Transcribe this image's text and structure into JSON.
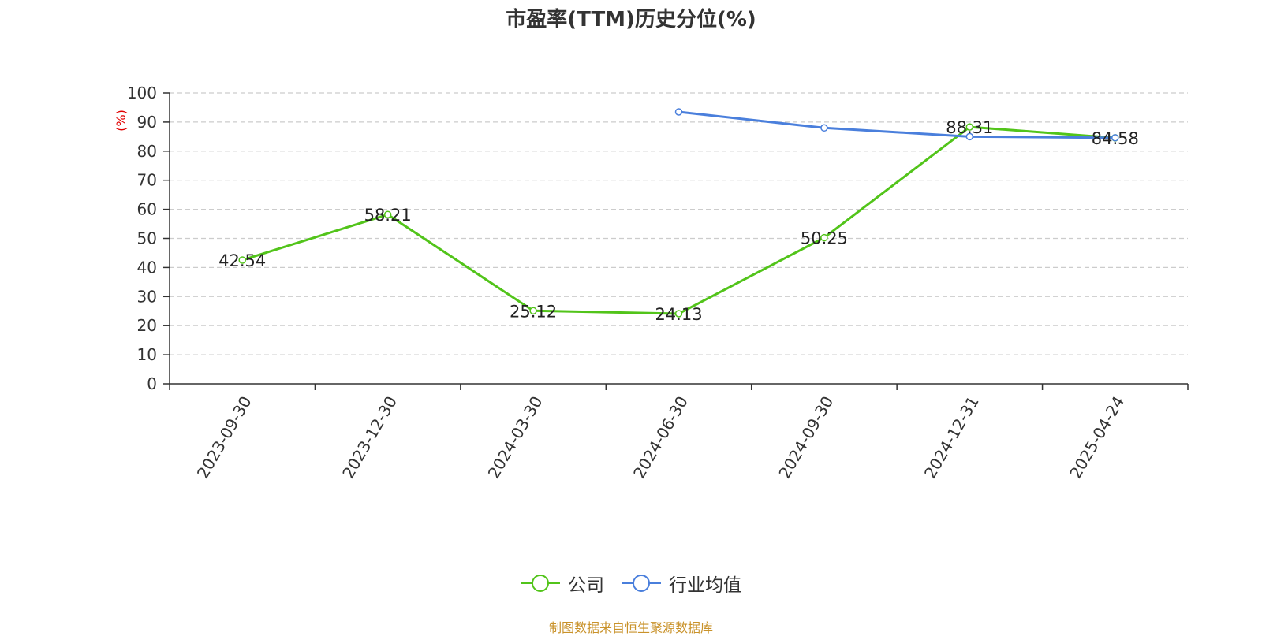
{
  "chart_data": {
    "type": "line",
    "title": "市盈率(TTM)历史分位(%)",
    "ylabel": "(%)",
    "categories": [
      "2023-09-30",
      "2023-12-30",
      "2024-03-30",
      "2024-06-30",
      "2024-09-30",
      "2024-12-31",
      "2025-04-24"
    ],
    "ylim": [
      0,
      100
    ],
    "yticks": [
      0,
      10,
      20,
      30,
      40,
      50,
      60,
      70,
      80,
      90,
      100
    ],
    "grid": true,
    "legend_position": "bottom",
    "series": [
      {
        "name": "公司",
        "color": "#52c41a",
        "values": [
          42.54,
          58.21,
          25.12,
          24.13,
          50.25,
          88.31,
          84.58
        ],
        "labels": [
          "42.54",
          "58.21",
          "25.12",
          "24.13",
          "50.25",
          "88.31",
          "84.58"
        ]
      },
      {
        "name": "行业均值",
        "color": "#4a7fdc",
        "values": [
          null,
          null,
          null,
          93.5,
          88,
          85,
          84.6
        ]
      }
    ]
  },
  "source": "制图数据来自恒生聚源数据库"
}
